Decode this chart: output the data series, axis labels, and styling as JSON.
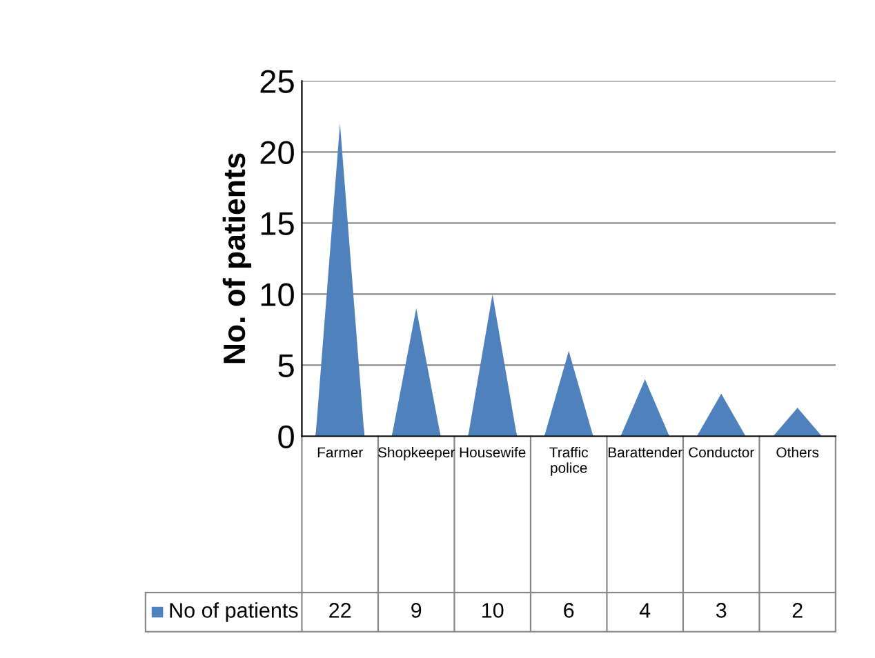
{
  "chart_data": {
    "type": "bar",
    "ylabel": "No. of patients",
    "categories": [
      "Farmer",
      "Shopkeeper",
      "Housewife",
      "Traffic police",
      "Barattender",
      "Conductor",
      "Others"
    ],
    "series": [
      {
        "name": "No of patients",
        "color": "#4f81bd",
        "values": [
          22,
          9,
          10,
          6,
          4,
          3,
          2
        ]
      }
    ],
    "ylim": [
      0,
      25
    ],
    "yticks": [
      0,
      5,
      10,
      15,
      20,
      25
    ],
    "grid": "y",
    "legend": "bottom",
    "data_labels": true
  }
}
